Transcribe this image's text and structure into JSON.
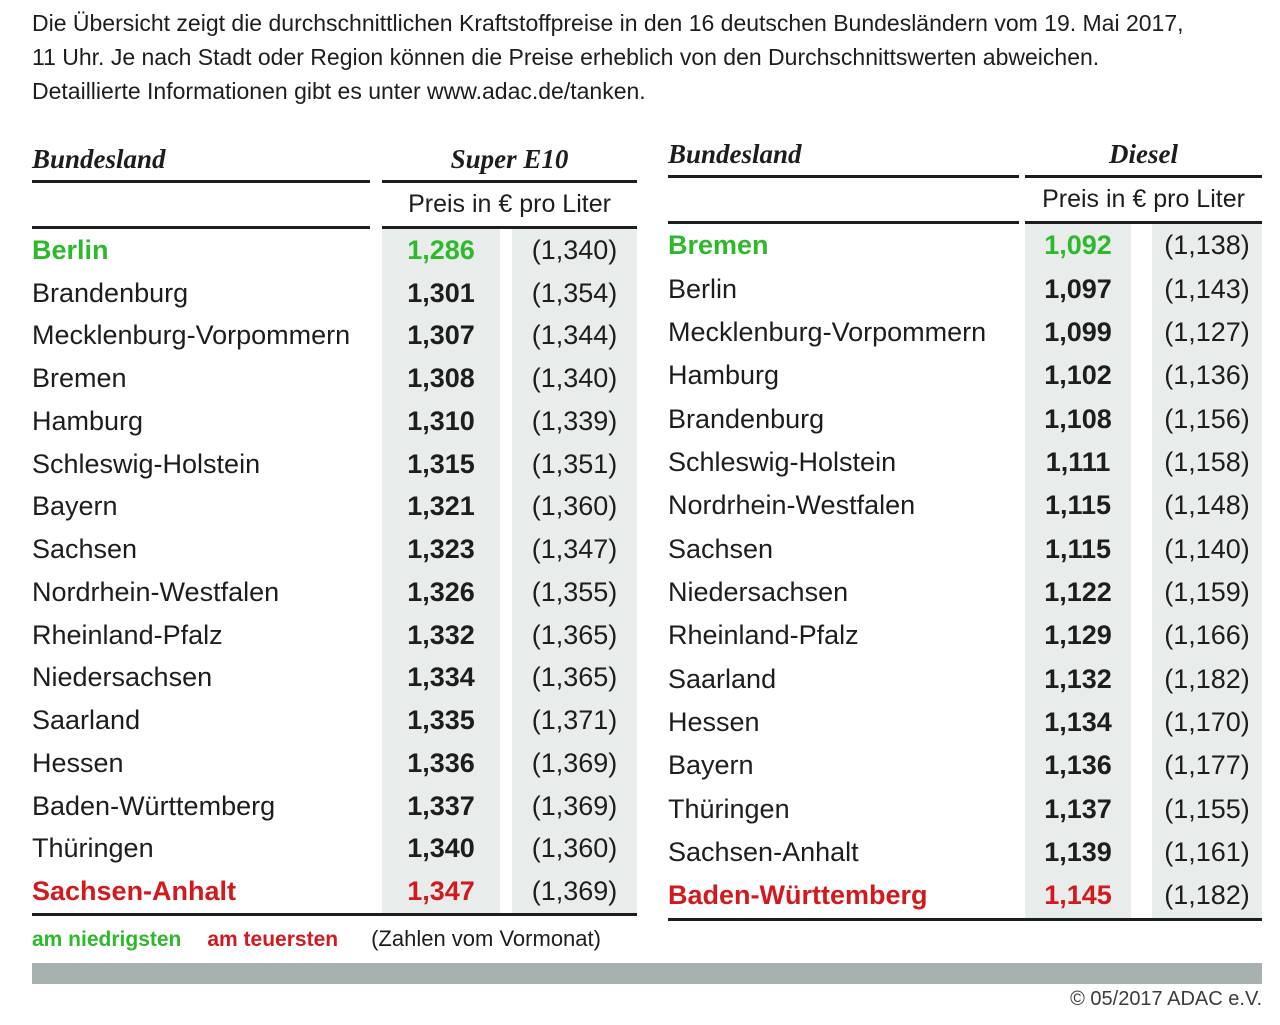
{
  "intro_lines": [
    "Die Übersicht zeigt die durchschnittlichen Kraftstoffpreise in den 16 deutschen Bundesländern vom 19. Mai 2017,",
    "11 Uhr. Je nach Stadt oder Region können die Preise erheblich von den Durchschnittswerten abweichen.",
    "Detaillierte Informationen gibt es unter www.adac.de/tanken."
  ],
  "chart_data": [
    {
      "type": "table",
      "state_label": "Bundesland",
      "fuel_label": "Super E10",
      "price_label": "Preis in € pro Liter",
      "rows": [
        {
          "state": "Berlin",
          "price": "1,286",
          "prev": "(1,340)",
          "highlight": "green"
        },
        {
          "state": "Brandenburg",
          "price": "1,301",
          "prev": "(1,354)",
          "highlight": null
        },
        {
          "state": "Mecklenburg-Vorpommern",
          "price": "1,307",
          "prev": "(1,344)",
          "highlight": null
        },
        {
          "state": "Bremen",
          "price": "1,308",
          "prev": "(1,340)",
          "highlight": null
        },
        {
          "state": "Hamburg",
          "price": "1,310",
          "prev": "(1,339)",
          "highlight": null
        },
        {
          "state": "Schleswig-Holstein",
          "price": "1,315",
          "prev": "(1,351)",
          "highlight": null
        },
        {
          "state": "Bayern",
          "price": "1,321",
          "prev": "(1,360)",
          "highlight": null
        },
        {
          "state": "Sachsen",
          "price": "1,323",
          "prev": "(1,347)",
          "highlight": null
        },
        {
          "state": "Nordrhein-Westfalen",
          "price": "1,326",
          "prev": "(1,355)",
          "highlight": null
        },
        {
          "state": "Rheinland-Pfalz",
          "price": "1,332",
          "prev": "(1,365)",
          "highlight": null
        },
        {
          "state": "Niedersachsen",
          "price": "1,334",
          "prev": "(1,365)",
          "highlight": null
        },
        {
          "state": "Saarland",
          "price": "1,335",
          "prev": "(1,371)",
          "highlight": null
        },
        {
          "state": "Hessen",
          "price": "1,336",
          "prev": "(1,369)",
          "highlight": null
        },
        {
          "state": "Baden-Württemberg",
          "price": "1,337",
          "prev": "(1,369)",
          "highlight": null
        },
        {
          "state": "Thüringen",
          "price": "1,340",
          "prev": "(1,360)",
          "highlight": null
        },
        {
          "state": "Sachsen-Anhalt",
          "price": "1,347",
          "prev": "(1,369)",
          "highlight": "red"
        }
      ]
    },
    {
      "type": "table",
      "state_label": "Bundesland",
      "fuel_label": "Diesel",
      "price_label": "Preis in € pro Liter",
      "rows": [
        {
          "state": "Bremen",
          "price": "1,092",
          "prev": "(1,138)",
          "highlight": "green"
        },
        {
          "state": "Berlin",
          "price": "1,097",
          "prev": "(1,143)",
          "highlight": null
        },
        {
          "state": "Mecklenburg-Vorpommern",
          "price": "1,099",
          "prev": "(1,127)",
          "highlight": null
        },
        {
          "state": "Hamburg",
          "price": "1,102",
          "prev": "(1,136)",
          "highlight": null
        },
        {
          "state": "Brandenburg",
          "price": "1,108",
          "prev": "(1,156)",
          "highlight": null
        },
        {
          "state": "Schleswig-Holstein",
          "price": "1,111",
          "prev": "(1,158)",
          "highlight": null
        },
        {
          "state": "Nordrhein-Westfalen",
          "price": "1,115",
          "prev": "(1,148)",
          "highlight": null
        },
        {
          "state": "Sachsen",
          "price": "1,115",
          "prev": "(1,140)",
          "highlight": null
        },
        {
          "state": "Niedersachsen",
          "price": "1,122",
          "prev": "(1,159)",
          "highlight": null
        },
        {
          "state": "Rheinland-Pfalz",
          "price": "1,129",
          "prev": "(1,166)",
          "highlight": null
        },
        {
          "state": "Saarland",
          "price": "1,132",
          "prev": "(1,182)",
          "highlight": null
        },
        {
          "state": "Hessen",
          "price": "1,134",
          "prev": "(1,170)",
          "highlight": null
        },
        {
          "state": "Bayern",
          "price": "1,136",
          "prev": "(1,177)",
          "highlight": null
        },
        {
          "state": "Thüringen",
          "price": "1,137",
          "prev": "(1,155)",
          "highlight": null
        },
        {
          "state": "Sachsen-Anhalt",
          "price": "1,139",
          "prev": "(1,161)",
          "highlight": null
        },
        {
          "state": "Baden-Württemberg",
          "price": "1,145",
          "prev": "(1,182)",
          "highlight": "red"
        }
      ]
    }
  ],
  "legend": {
    "lowest": "am niedrigsten",
    "highest": "am teuersten",
    "note": "(Zahlen vom Vormonat)"
  },
  "copyright": "© 05/2017 ADAC e.V.",
  "colors": {
    "text": "#1d1d1b",
    "green_lowest": "#2eb92c",
    "red_highest": "#d2191e",
    "price_column_bg": "#e8eceb",
    "footer_bar": "#a7b1b0"
  }
}
